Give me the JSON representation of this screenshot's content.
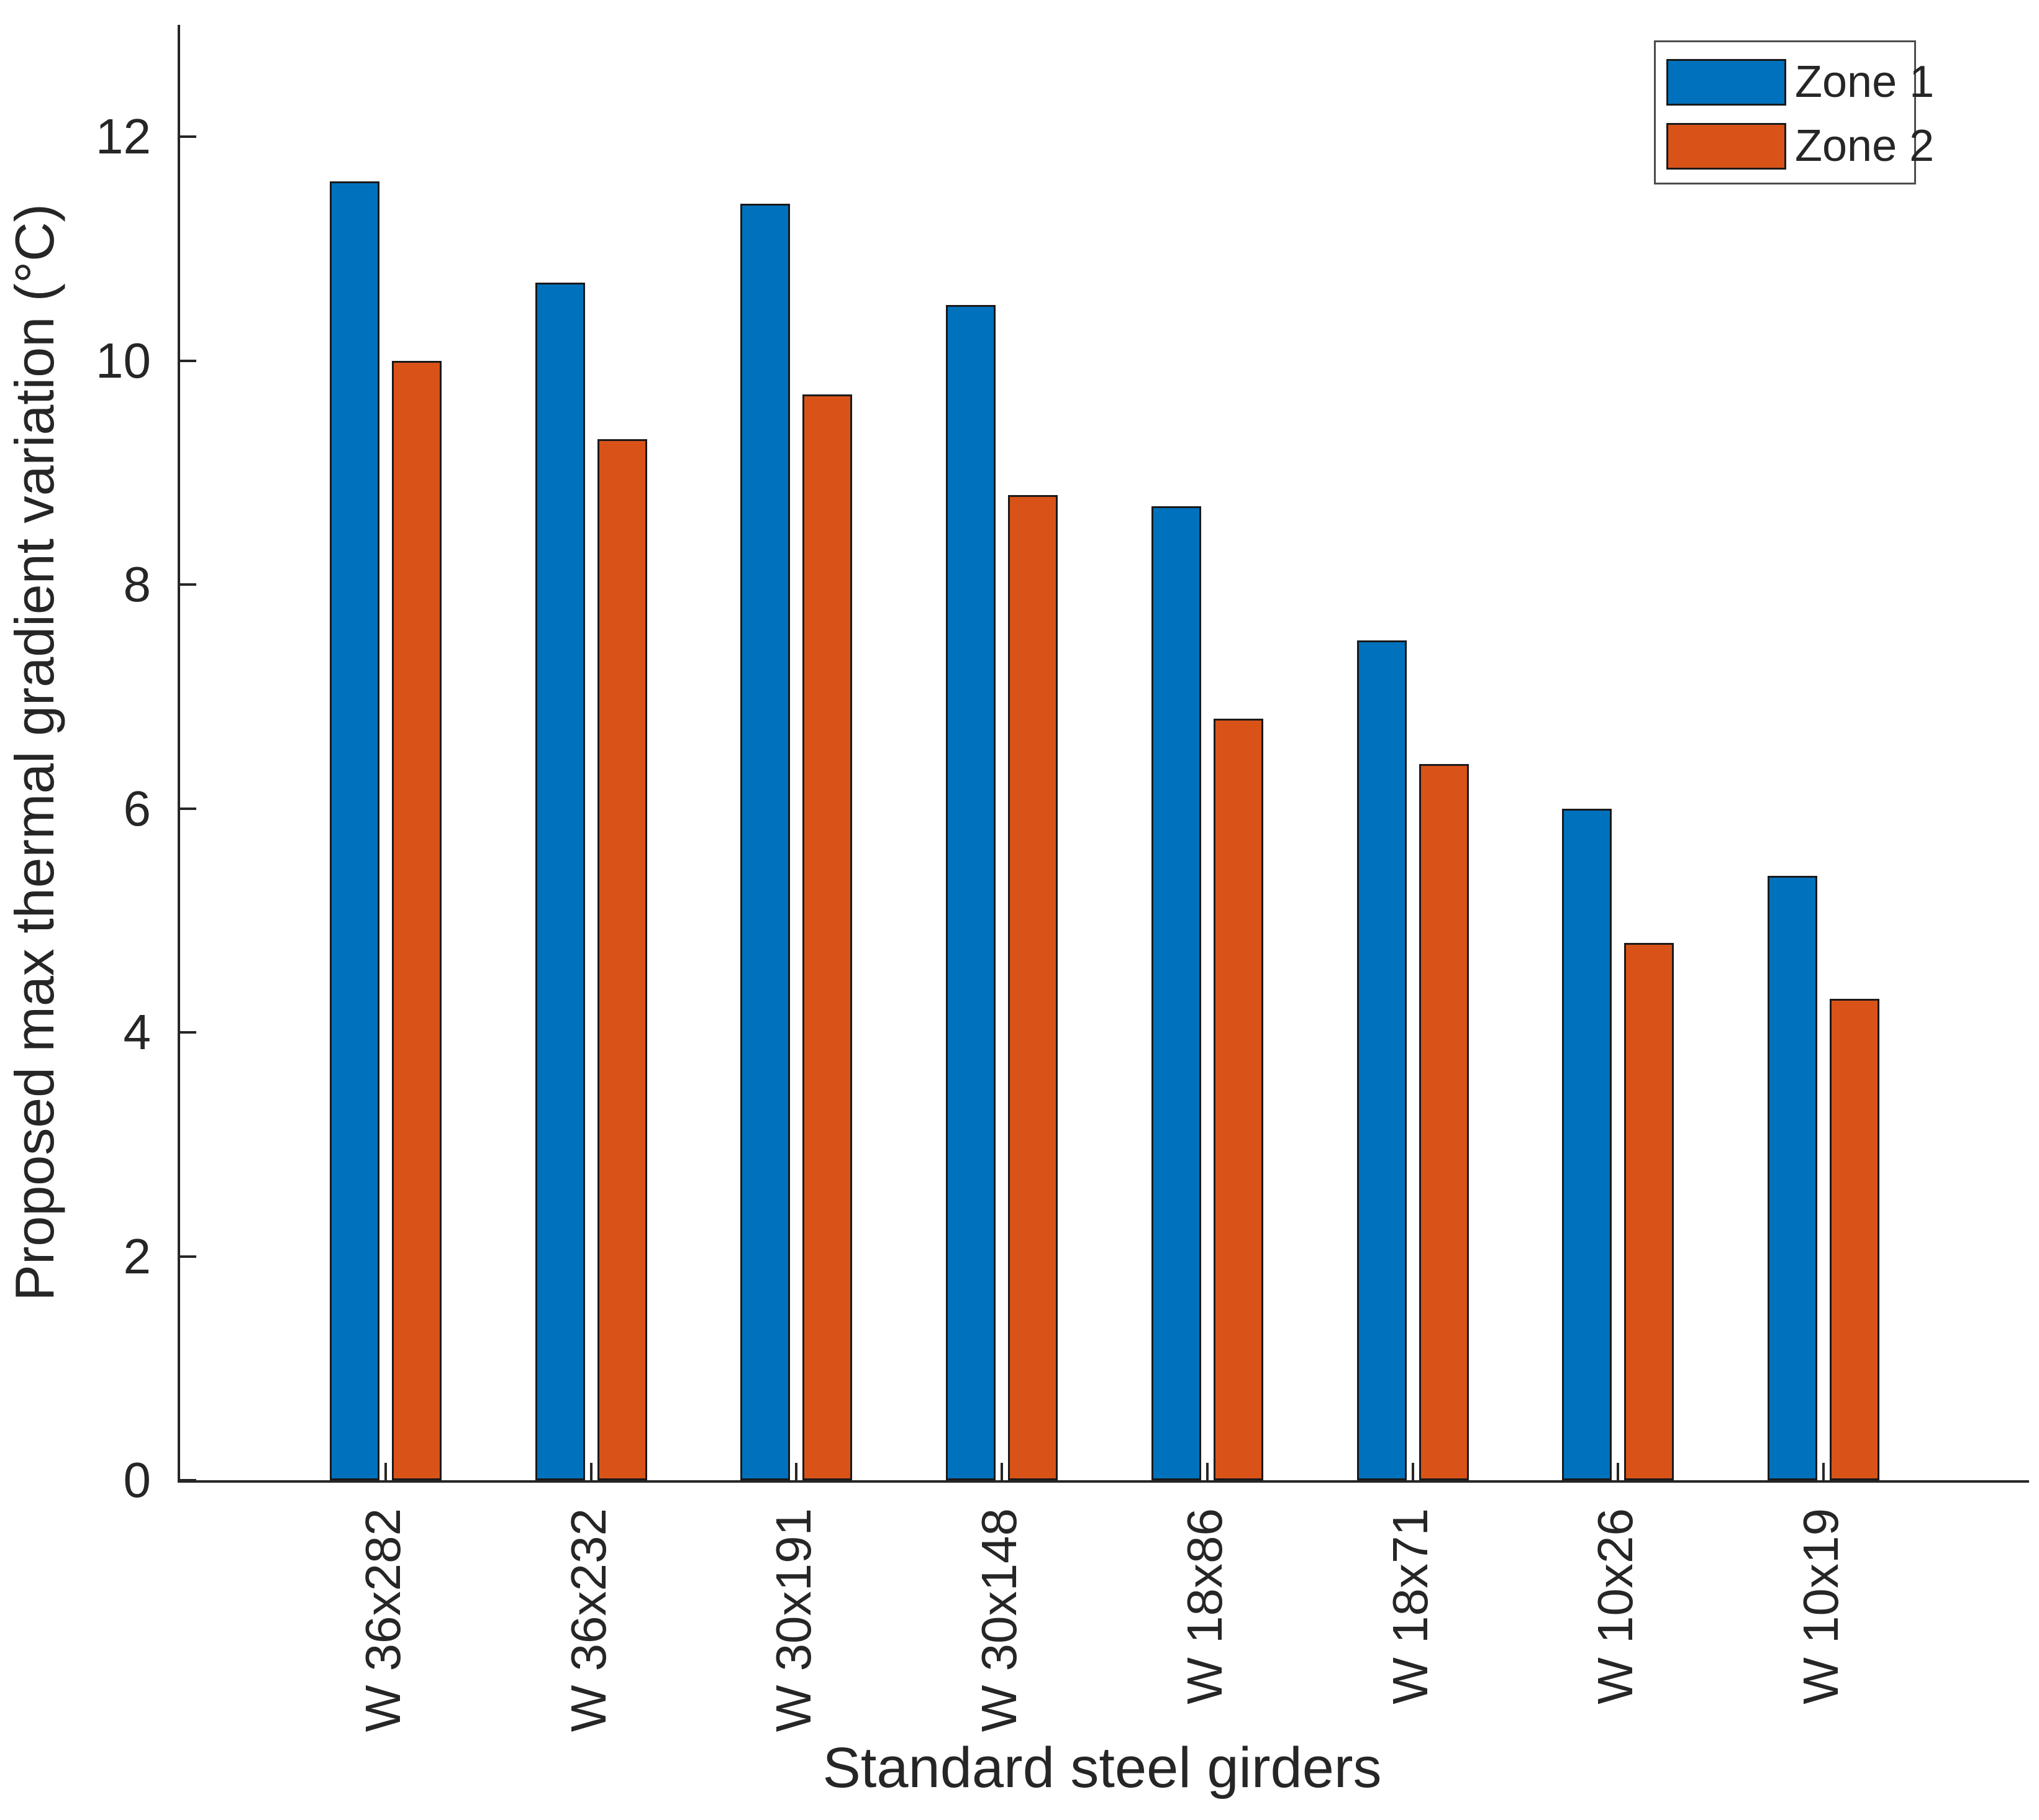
{
  "chart_data": {
    "type": "bar",
    "xlabel": "Standard steel girders",
    "ylabel": "Proposed max thermal gradient variation (°C)",
    "categories": [
      "W 36x282",
      "W 36x232",
      "W 30x191",
      "W 30x148",
      "W 18x86",
      "W 18x71",
      "W 10x26",
      "W 10x19"
    ],
    "series": [
      {
        "name": "Zone 1",
        "color": "#0072BD",
        "values": [
          11.6,
          10.7,
          11.4,
          10.5,
          8.7,
          7.5,
          6.0,
          5.4
        ]
      },
      {
        "name": "Zone 2",
        "color": "#D95319",
        "values": [
          10.0,
          9.3,
          9.7,
          8.8,
          6.8,
          6.4,
          4.8,
          4.3
        ]
      }
    ],
    "ylim": [
      0,
      13
    ],
    "yticks": [
      0,
      2,
      4,
      6,
      8,
      10,
      12
    ],
    "grid": false,
    "legend_position": "top-right",
    "x_tick_label_rotation": 90,
    "axis_color": "#262626",
    "bar_edge_color": "#1a1a1a"
  }
}
